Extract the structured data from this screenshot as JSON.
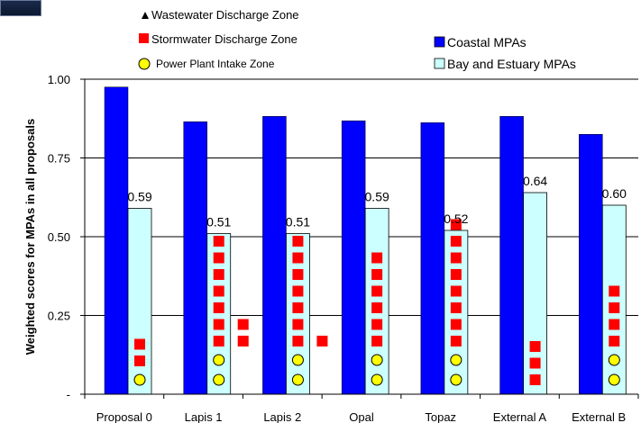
{
  "legend": {
    "wastewater": "Wastewater Discharge Zone",
    "stormwater": "Stormwater Discharge Zone",
    "powerplant": "Power Plant Intake Zone",
    "coastal": "Coastal MPAs",
    "bay": "Bay and Estuary MPAs"
  },
  "colors": {
    "coastal": "#0000ff",
    "bay": "#ccffff",
    "stormwater": "#ff0000",
    "powerplant": "#ffff00",
    "wastewater": "#000000",
    "gridline": "#000000"
  },
  "chart_data": {
    "type": "bar",
    "ylabel": "Weighted scores for MPAs in all proposals",
    "ylim": [
      0,
      1
    ],
    "yticks": [
      {
        "value": 0,
        "label": "-"
      },
      {
        "value": 0.25,
        "label": "0.25"
      },
      {
        "value": 0.5,
        "label": "0.50"
      },
      {
        "value": 0.75,
        "label": "0.75"
      },
      {
        "value": 1.0,
        "label": "1.00"
      }
    ],
    "grid": true,
    "legend_position": "top",
    "categories": [
      "Proposal 0",
      "Lapis 1",
      "Lapis 2",
      "Opal",
      "Topaz",
      "External A",
      "External B"
    ],
    "series": [
      {
        "name": "Coastal MPAs",
        "values": [
          0.975,
          0.865,
          0.882,
          0.868,
          0.862,
          0.882,
          0.825
        ]
      },
      {
        "name": "Bay and Estuary MPAs",
        "values": [
          0.59,
          0.51,
          0.51,
          0.59,
          0.52,
          0.64,
          0.6
        ],
        "labels": [
          "0.59",
          "0.51",
          "0.51",
          "0.59",
          "0.52",
          "0.64",
          "0.60"
        ]
      }
    ],
    "markers": [
      {
        "stormwater": [
          2,
          0
        ],
        "powerplant": 1
      },
      {
        "stormwater": [
          7,
          2
        ],
        "powerplant": 2
      },
      {
        "stormwater": [
          7,
          1
        ],
        "powerplant": 2
      },
      {
        "stormwater": [
          6,
          0
        ],
        "powerplant": 2
      },
      {
        "stormwater": [
          8,
          0
        ],
        "powerplant": 2
      },
      {
        "stormwater": [
          3,
          0
        ],
        "powerplant": 0
      },
      {
        "stormwater": [
          4,
          0
        ],
        "powerplant": 2
      }
    ]
  }
}
